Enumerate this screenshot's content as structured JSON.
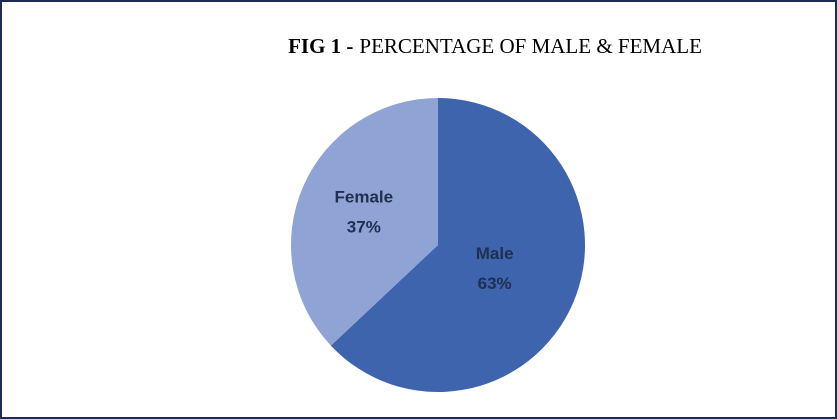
{
  "chart_data": {
    "type": "pie",
    "title_prefix": "FIG 1 -",
    "title": "PERCENTAGE OF MALE & FEMALE",
    "categories": [
      "Male",
      "Female"
    ],
    "values": [
      63,
      37
    ],
    "value_labels": [
      "63%",
      "37%"
    ],
    "colors": [
      "#3d64ad",
      "#8fa3d4"
    ]
  }
}
